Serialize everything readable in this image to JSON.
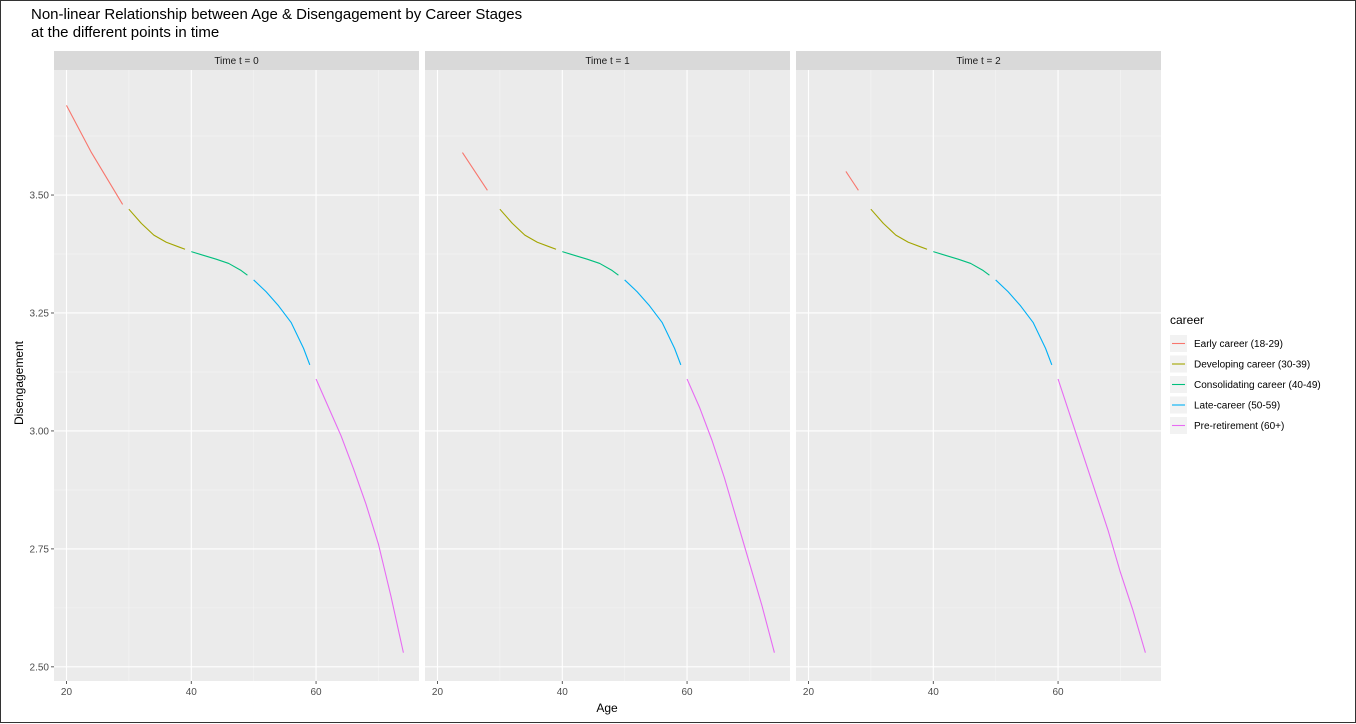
{
  "chart_data": {
    "type": "line",
    "title_lines": [
      "Non-linear Relationship between Age & Disengagement by Career Stages",
      "at the different points in time"
    ],
    "xlabel": "Age",
    "ylabel": "Disengagement",
    "xlim": [
      18.0,
      76.5
    ],
    "ylim": [
      2.47,
      3.765
    ],
    "x_ticks": [
      20,
      40,
      60
    ],
    "x_tick_labels": [
      "20",
      "40",
      "60"
    ],
    "y_ticks": [
      2.5,
      2.75,
      3.0,
      3.25,
      3.5
    ],
    "y_tick_labels": [
      "2.50",
      "2.75",
      "3.00",
      "3.25",
      "3.50"
    ],
    "grid": true,
    "legend": {
      "title": "career",
      "placement": "right",
      "entries": [
        "Early career (18-29)",
        "Developing career (30-39)",
        "Consolidating career (40-49)",
        "Late-career (50-59)",
        "Pre-retirement (60+)"
      ]
    },
    "series_colors": [
      "#F8766D",
      "#A3A500",
      "#00BF7D",
      "#00B0F6",
      "#E76BF3"
    ],
    "panels": [
      {
        "strip_label": "Time t = 0",
        "series": [
          {
            "name": "Early career (18-29)",
            "x": [
              20,
              24,
              29
            ],
            "y": [
              3.69,
              3.59,
              3.48
            ]
          },
          {
            "name": "Developing career (30-39)",
            "x": [
              30,
              32,
              34,
              36,
              38,
              39
            ],
            "y": [
              3.47,
              3.44,
              3.415,
              3.4,
              3.39,
              3.385
            ]
          },
          {
            "name": "Consolidating career (40-49)",
            "x": [
              40,
              42,
              44,
              46,
              48,
              49
            ],
            "y": [
              3.38,
              3.372,
              3.364,
              3.355,
              3.34,
              3.33
            ]
          },
          {
            "name": "Late-career (50-59)",
            "x": [
              50,
              52,
              54,
              56,
              58,
              59
            ],
            "y": [
              3.32,
              3.295,
              3.265,
              3.23,
              3.175,
              3.14
            ]
          },
          {
            "name": "Pre-retirement (60+)",
            "x": [
              60,
              62,
              64,
              66,
              68,
              70,
              72,
              74
            ],
            "y": [
              3.11,
              3.05,
              2.99,
              2.92,
              2.845,
              2.76,
              2.65,
              2.53
            ]
          }
        ]
      },
      {
        "strip_label": "Time t = 1",
        "series": [
          {
            "name": "Early career (18-29)",
            "x": [
              24,
              26,
              28
            ],
            "y": [
              3.59,
              3.55,
              3.51
            ]
          },
          {
            "name": "Developing career (30-39)",
            "x": [
              30,
              32,
              34,
              36,
              38,
              39
            ],
            "y": [
              3.47,
              3.44,
              3.415,
              3.4,
              3.39,
              3.385
            ]
          },
          {
            "name": "Consolidating career (40-49)",
            "x": [
              40,
              42,
              44,
              46,
              48,
              49
            ],
            "y": [
              3.38,
              3.372,
              3.364,
              3.355,
              3.34,
              3.33
            ]
          },
          {
            "name": "Late-career (50-59)",
            "x": [
              50,
              52,
              54,
              56,
              58,
              59
            ],
            "y": [
              3.32,
              3.295,
              3.265,
              3.23,
              3.175,
              3.14
            ]
          },
          {
            "name": "Pre-retirement (60+)",
            "x": [
              60,
              62,
              64,
              66,
              68,
              70,
              72,
              74
            ],
            "y": [
              3.11,
              3.05,
              2.98,
              2.9,
              2.81,
              2.72,
              2.63,
              2.53
            ]
          }
        ]
      },
      {
        "strip_label": "Time t = 2",
        "series": [
          {
            "name": "Early career (18-29)",
            "x": [
              26,
              27,
              28
            ],
            "y": [
              3.55,
              3.53,
              3.51
            ]
          },
          {
            "name": "Developing career (30-39)",
            "x": [
              30,
              32,
              34,
              36,
              38,
              39
            ],
            "y": [
              3.47,
              3.44,
              3.415,
              3.4,
              3.39,
              3.385
            ]
          },
          {
            "name": "Consolidating career (40-49)",
            "x": [
              40,
              42,
              44,
              46,
              48,
              49
            ],
            "y": [
              3.38,
              3.372,
              3.364,
              3.355,
              3.34,
              3.33
            ]
          },
          {
            "name": "Late-career (50-59)",
            "x": [
              50,
              52,
              54,
              56,
              58,
              59
            ],
            "y": [
              3.32,
              3.295,
              3.265,
              3.23,
              3.175,
              3.14
            ]
          },
          {
            "name": "Pre-retirement (60+)",
            "x": [
              60,
              62,
              64,
              66,
              68,
              70,
              72,
              74
            ],
            "y": [
              3.11,
              3.03,
              2.95,
              2.87,
              2.79,
              2.7,
              2.62,
              2.53
            ]
          }
        ]
      }
    ]
  }
}
